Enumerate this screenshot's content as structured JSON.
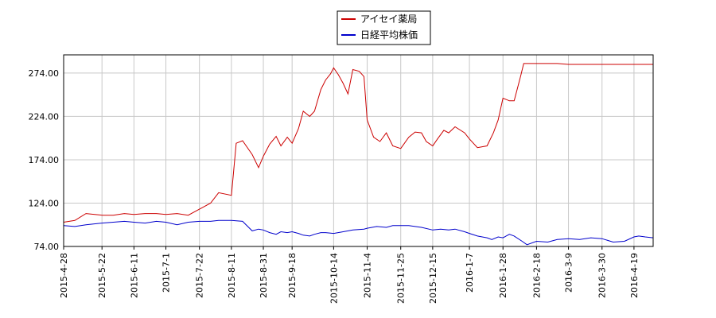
{
  "chart_data": {
    "type": "line",
    "title": "",
    "xlabel": "",
    "ylabel": "",
    "ylim": [
      74,
      295
    ],
    "xlim": [
      "2015-04-28",
      "2016-05-01"
    ],
    "grid": true,
    "legend": "top-center",
    "y_ticks": [
      "74.00",
      "124.00",
      "174.00",
      "224.00",
      "274.00"
    ],
    "y_tick_values": [
      74,
      124,
      174,
      224,
      274
    ],
    "x_ticks": [
      "2015-4-28",
      "2015-5-22",
      "2015-6-11",
      "2015-7-1",
      "2015-7-22",
      "2015-8-11",
      "2015-8-31",
      "2015-9-18",
      "2015-10-14",
      "2015-11-4",
      "2015-11-25",
      "2015-12-15",
      "2016-1-7",
      "2016-1-28",
      "2016-2-18",
      "2016-3-9",
      "2016-3-30",
      "2016-4-19"
    ],
    "x_tick_dates": [
      "2015-04-28",
      "2015-05-22",
      "2015-06-11",
      "2015-07-01",
      "2015-07-22",
      "2015-08-11",
      "2015-08-31",
      "2015-09-18",
      "2015-10-14",
      "2015-11-04",
      "2015-11-25",
      "2015-12-15",
      "2016-01-07",
      "2016-01-28",
      "2016-02-18",
      "2016-03-09",
      "2016-03-30",
      "2016-04-19"
    ],
    "series": [
      {
        "name": "アイセイ薬局",
        "color": "#cc0000",
        "points": [
          [
            "2015-04-28",
            102
          ],
          [
            "2015-05-05",
            104
          ],
          [
            "2015-05-12",
            112
          ],
          [
            "2015-05-22",
            110
          ],
          [
            "2015-05-29",
            110
          ],
          [
            "2015-06-05",
            112
          ],
          [
            "2015-06-11",
            111
          ],
          [
            "2015-06-18",
            112
          ],
          [
            "2015-06-25",
            112
          ],
          [
            "2015-07-01",
            111
          ],
          [
            "2015-07-08",
            112
          ],
          [
            "2015-07-15",
            110
          ],
          [
            "2015-07-22",
            117
          ],
          [
            "2015-07-29",
            124
          ],
          [
            "2015-08-03",
            136
          ],
          [
            "2015-08-11",
            133
          ],
          [
            "2015-08-14",
            193
          ],
          [
            "2015-08-18",
            196
          ],
          [
            "2015-08-24",
            180
          ],
          [
            "2015-08-28",
            165
          ],
          [
            "2015-08-31",
            178
          ],
          [
            "2015-09-04",
            192
          ],
          [
            "2015-09-08",
            201
          ],
          [
            "2015-09-11",
            190
          ],
          [
            "2015-09-15",
            200
          ],
          [
            "2015-09-18",
            193
          ],
          [
            "2015-09-22",
            210
          ],
          [
            "2015-09-25",
            230
          ],
          [
            "2015-09-29",
            224
          ],
          [
            "2015-10-02",
            230
          ],
          [
            "2015-10-06",
            255
          ],
          [
            "2015-10-09",
            266
          ],
          [
            "2015-10-12",
            273
          ],
          [
            "2015-10-14",
            280
          ],
          [
            "2015-10-17",
            272
          ],
          [
            "2015-10-20",
            262
          ],
          [
            "2015-10-23",
            250
          ],
          [
            "2015-10-26",
            278
          ],
          [
            "2015-10-30",
            276
          ],
          [
            "2015-11-02",
            270
          ],
          [
            "2015-11-04",
            220
          ],
          [
            "2015-11-08",
            200
          ],
          [
            "2015-11-12",
            195
          ],
          [
            "2015-11-16",
            205
          ],
          [
            "2015-11-20",
            190
          ],
          [
            "2015-11-25",
            187
          ],
          [
            "2015-11-30",
            200
          ],
          [
            "2015-12-04",
            206
          ],
          [
            "2015-12-08",
            205
          ],
          [
            "2015-12-11",
            195
          ],
          [
            "2015-12-15",
            190
          ],
          [
            "2015-12-18",
            198
          ],
          [
            "2015-12-22",
            208
          ],
          [
            "2015-12-25",
            205
          ],
          [
            "2015-12-29",
            212
          ],
          [
            "2016-01-04",
            205
          ],
          [
            "2016-01-07",
            198
          ],
          [
            "2016-01-12",
            188
          ],
          [
            "2016-01-18",
            190
          ],
          [
            "2016-01-22",
            205
          ],
          [
            "2016-01-25",
            220
          ],
          [
            "2016-01-28",
            245
          ],
          [
            "2016-02-01",
            242
          ],
          [
            "2016-02-04",
            242
          ],
          [
            "2016-02-08",
            270
          ],
          [
            "2016-02-10",
            285
          ],
          [
            "2016-02-18",
            285
          ],
          [
            "2016-02-25",
            285
          ],
          [
            "2016-03-02",
            285
          ],
          [
            "2016-03-09",
            284
          ],
          [
            "2016-03-16",
            284
          ],
          [
            "2016-03-23",
            284
          ],
          [
            "2016-03-30",
            284
          ],
          [
            "2016-04-06",
            284
          ],
          [
            "2016-04-13",
            284
          ],
          [
            "2016-04-19",
            284
          ],
          [
            "2016-04-26",
            284
          ],
          [
            "2016-05-01",
            284
          ]
        ]
      },
      {
        "name": "日経平均株価",
        "color": "#0000cc",
        "points": [
          [
            "2015-04-28",
            98
          ],
          [
            "2015-05-05",
            97
          ],
          [
            "2015-05-12",
            99
          ],
          [
            "2015-05-22",
            101
          ],
          [
            "2015-05-29",
            102
          ],
          [
            "2015-06-05",
            103
          ],
          [
            "2015-06-11",
            102
          ],
          [
            "2015-06-18",
            101
          ],
          [
            "2015-06-25",
            103
          ],
          [
            "2015-07-01",
            102
          ],
          [
            "2015-07-08",
            99
          ],
          [
            "2015-07-15",
            102
          ],
          [
            "2015-07-22",
            103
          ],
          [
            "2015-07-29",
            103
          ],
          [
            "2015-08-03",
            104
          ],
          [
            "2015-08-11",
            104
          ],
          [
            "2015-08-18",
            103
          ],
          [
            "2015-08-24",
            92
          ],
          [
            "2015-08-28",
            94
          ],
          [
            "2015-08-31",
            93
          ],
          [
            "2015-09-04",
            90
          ],
          [
            "2015-09-08",
            88
          ],
          [
            "2015-09-11",
            91
          ],
          [
            "2015-09-15",
            90
          ],
          [
            "2015-09-18",
            91
          ],
          [
            "2015-09-22",
            89
          ],
          [
            "2015-09-25",
            87
          ],
          [
            "2015-09-29",
            86
          ],
          [
            "2015-10-02",
            88
          ],
          [
            "2015-10-06",
            90
          ],
          [
            "2015-10-09",
            90
          ],
          [
            "2015-10-14",
            89
          ],
          [
            "2015-10-20",
            91
          ],
          [
            "2015-10-26",
            93
          ],
          [
            "2015-11-02",
            94
          ],
          [
            "2015-11-04",
            95
          ],
          [
            "2015-11-10",
            97
          ],
          [
            "2015-11-16",
            96
          ],
          [
            "2015-11-20",
            98
          ],
          [
            "2015-11-25",
            98
          ],
          [
            "2015-11-30",
            98
          ],
          [
            "2015-12-04",
            97
          ],
          [
            "2015-12-08",
            96
          ],
          [
            "2015-12-15",
            93
          ],
          [
            "2015-12-20",
            94
          ],
          [
            "2015-12-25",
            93
          ],
          [
            "2015-12-29",
            94
          ],
          [
            "2016-01-04",
            91
          ],
          [
            "2016-01-07",
            89
          ],
          [
            "2016-01-12",
            86
          ],
          [
            "2016-01-18",
            84
          ],
          [
            "2016-01-21",
            82
          ],
          [
            "2016-01-25",
            85
          ],
          [
            "2016-01-28",
            84
          ],
          [
            "2016-02-01",
            88
          ],
          [
            "2016-02-04",
            86
          ],
          [
            "2016-02-09",
            80
          ],
          [
            "2016-02-12",
            76
          ],
          [
            "2016-02-18",
            80
          ],
          [
            "2016-02-25",
            79
          ],
          [
            "2016-03-02",
            82
          ],
          [
            "2016-03-09",
            83
          ],
          [
            "2016-03-16",
            82
          ],
          [
            "2016-03-23",
            84
          ],
          [
            "2016-03-30",
            83
          ],
          [
            "2016-04-06",
            79
          ],
          [
            "2016-04-13",
            80
          ],
          [
            "2016-04-19",
            85
          ],
          [
            "2016-04-22",
            86
          ],
          [
            "2016-04-26",
            85
          ],
          [
            "2016-05-01",
            84
          ]
        ]
      }
    ]
  }
}
